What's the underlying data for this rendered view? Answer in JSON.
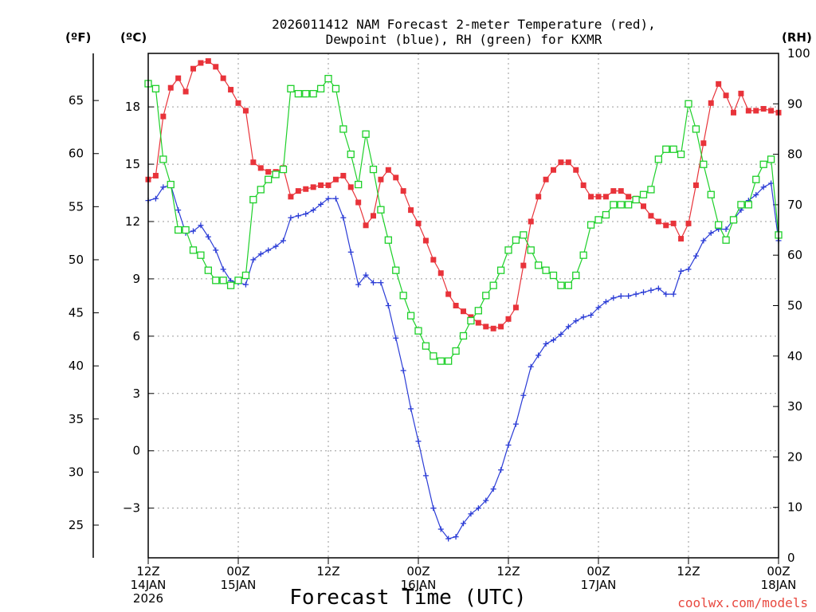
{
  "chart_data": {
    "type": "line",
    "title_line1": "2026011412 NAM Forecast 2-meter Temperature (red),",
    "title_line2": "Dewpoint (blue), RH (green) for KXMR",
    "unit_f": "(ºF)",
    "unit_c": "(ºC)",
    "unit_rh": "(RH)",
    "xlabel": "Forecast Time (UTC)",
    "credit": "coolwx.com/models",
    "x_range": [
      0,
      84
    ],
    "y_celsius_range": [
      -5.6,
      20.8
    ],
    "y_rh_range": [
      0,
      100
    ],
    "y_fahrenheit_ticks": [
      "65",
      "60",
      "55",
      "50",
      "45",
      "40",
      "35",
      "30",
      "25"
    ],
    "y_fahrenheit_values": [
      65,
      60,
      55,
      50,
      45,
      40,
      35,
      30,
      25
    ],
    "y_celsius_ticks": [
      "18",
      "15",
      "12",
      "9",
      "6",
      "3",
      "0",
      "−3"
    ],
    "y_celsius_values": [
      18,
      15,
      12,
      9,
      6,
      3,
      0,
      -3
    ],
    "y_rh_ticks": [
      "100",
      "90",
      "80",
      "70",
      "60",
      "50",
      "40",
      "30",
      "20",
      "10",
      "0"
    ],
    "y_rh_values": [
      100,
      90,
      80,
      70,
      60,
      50,
      40,
      30,
      20,
      10,
      0
    ],
    "x_ticks": [
      {
        "h": 0,
        "lines": [
          "12Z",
          "14JAN",
          "2026"
        ]
      },
      {
        "h": 12,
        "lines": [
          "00Z",
          "15JAN"
        ]
      },
      {
        "h": 24,
        "lines": [
          "12Z"
        ]
      },
      {
        "h": 36,
        "lines": [
          "00Z",
          "16JAN"
        ]
      },
      {
        "h": 48,
        "lines": [
          "12Z"
        ]
      },
      {
        "h": 60,
        "lines": [
          "00Z",
          "17JAN"
        ]
      },
      {
        "h": 72,
        "lines": [
          "12Z"
        ]
      },
      {
        "h": 84,
        "lines": [
          "00Z",
          "18JAN"
        ]
      }
    ],
    "series": [
      {
        "name": "Temperature",
        "unit": "C",
        "color": "#e8333a",
        "marker": "filled-square",
        "x": [
          0,
          1,
          2,
          3,
          4,
          5,
          6,
          7,
          8,
          9,
          10,
          11,
          12,
          13,
          14,
          15,
          16,
          17,
          18,
          19,
          20,
          21,
          22,
          23,
          24,
          25,
          26,
          27,
          28,
          29,
          30,
          31,
          32,
          33,
          34,
          35,
          36,
          37,
          38,
          39,
          40,
          41,
          42,
          43,
          44,
          45,
          46,
          47,
          48,
          49,
          50,
          51,
          52,
          53,
          54,
          55,
          56,
          57,
          58,
          59,
          60,
          61,
          62,
          63,
          64,
          65,
          66,
          67,
          68,
          69,
          70,
          71,
          72,
          73,
          74,
          75,
          76,
          77,
          78,
          79,
          80,
          81,
          82,
          83,
          84
        ],
        "values": [
          14.2,
          14.4,
          17.5,
          19.0,
          19.5,
          18.8,
          20.0,
          20.3,
          20.4,
          20.1,
          19.5,
          18.9,
          18.2,
          17.8,
          15.1,
          14.8,
          14.6,
          14.6,
          14.8,
          13.3,
          13.6,
          13.7,
          13.8,
          13.9,
          13.9,
          14.2,
          14.4,
          13.8,
          13.0,
          11.8,
          12.3,
          14.2,
          14.7,
          14.3,
          13.6,
          12.6,
          11.9,
          11.0,
          10.0,
          9.3,
          8.2,
          7.6,
          7.3,
          7.0,
          6.7,
          6.5,
          6.4,
          6.5,
          6.9,
          7.5,
          9.7,
          12.0,
          13.3,
          14.2,
          14.7,
          15.1,
          15.1,
          14.7,
          13.9,
          13.3,
          13.3,
          13.3,
          13.6,
          13.6,
          13.3,
          13.2,
          12.8,
          12.3,
          12.0,
          11.8,
          11.9,
          11.1,
          11.9,
          13.9,
          16.1,
          18.2,
          19.2,
          18.6,
          17.7,
          18.7,
          17.8,
          17.8,
          17.9,
          17.8,
          17.7
        ]
      },
      {
        "name": "Dewpoint",
        "unit": "C",
        "color": "#2b3cd6",
        "marker": "plus",
        "x": [
          0,
          1,
          2,
          3,
          4,
          5,
          6,
          7,
          8,
          9,
          10,
          11,
          12,
          13,
          14,
          15,
          16,
          17,
          18,
          19,
          20,
          21,
          22,
          23,
          24,
          25,
          26,
          27,
          28,
          29,
          30,
          31,
          32,
          33,
          34,
          35,
          36,
          37,
          38,
          39,
          40,
          41,
          42,
          43,
          44,
          45,
          46,
          47,
          48,
          49,
          50,
          51,
          52,
          53,
          54,
          55,
          56,
          57,
          58,
          59,
          60,
          61,
          62,
          63,
          64,
          65,
          66,
          67,
          68,
          69,
          70,
          71,
          72,
          73,
          74,
          75,
          76,
          77,
          78,
          79,
          80,
          81,
          82,
          83,
          84
        ],
        "values": [
          13.1,
          13.2,
          13.8,
          13.9,
          12.6,
          11.4,
          11.5,
          11.8,
          11.2,
          10.5,
          9.5,
          8.9,
          8.8,
          8.7,
          10.0,
          10.3,
          10.5,
          10.7,
          11.0,
          12.2,
          12.3,
          12.4,
          12.6,
          12.9,
          13.2,
          13.2,
          12.2,
          10.4,
          8.7,
          9.2,
          8.8,
          8.8,
          7.6,
          5.9,
          4.2,
          2.2,
          0.5,
          -1.3,
          -3.0,
          -4.1,
          -4.6,
          -4.5,
          -3.8,
          -3.3,
          -3.0,
          -2.6,
          -2.0,
          -1.0,
          0.3,
          1.4,
          2.9,
          4.4,
          5.0,
          5.6,
          5.8,
          6.1,
          6.5,
          6.8,
          7.0,
          7.1,
          7.5,
          7.8,
          8.0,
          8.1,
          8.1,
          8.2,
          8.3,
          8.4,
          8.5,
          8.2,
          8.2,
          9.4,
          9.5,
          10.2,
          11.0,
          11.4,
          11.6,
          11.6,
          12.1,
          12.6,
          13.1,
          13.4,
          13.8,
          14.0,
          11.0
        ]
      },
      {
        "name": "RH",
        "unit": "%",
        "color": "#1ed02a",
        "marker": "open-square",
        "x": [
          0,
          1,
          2,
          3,
          4,
          5,
          6,
          7,
          8,
          9,
          10,
          11,
          12,
          13,
          14,
          15,
          16,
          17,
          18,
          19,
          20,
          21,
          22,
          23,
          24,
          25,
          26,
          27,
          28,
          29,
          30,
          31,
          32,
          33,
          34,
          35,
          36,
          37,
          38,
          39,
          40,
          41,
          42,
          43,
          44,
          45,
          46,
          47,
          48,
          49,
          50,
          51,
          52,
          53,
          54,
          55,
          56,
          57,
          58,
          59,
          60,
          61,
          62,
          63,
          64,
          65,
          66,
          67,
          68,
          69,
          70,
          71,
          72,
          73,
          74,
          75,
          76,
          77,
          78,
          79,
          80,
          81,
          82,
          83,
          84
        ],
        "values": [
          94,
          93,
          79,
          74,
          65,
          65,
          61,
          60,
          57,
          55,
          55,
          54,
          55,
          56,
          71,
          73,
          75,
          76,
          77,
          93,
          92,
          92,
          92,
          93,
          95,
          93,
          85,
          80,
          74,
          84,
          77,
          69,
          63,
          57,
          52,
          48,
          45,
          42,
          40,
          39,
          39,
          41,
          44,
          47,
          49,
          52,
          54,
          57,
          61,
          63,
          64,
          61,
          58,
          57,
          56,
          54,
          54,
          56,
          60,
          66,
          67,
          68,
          70,
          70,
          70,
          71,
          72,
          73,
          79,
          81,
          81,
          80,
          90,
          85,
          78,
          72,
          66,
          63,
          67,
          70,
          70,
          75,
          78,
          79,
          64
        ]
      }
    ]
  }
}
